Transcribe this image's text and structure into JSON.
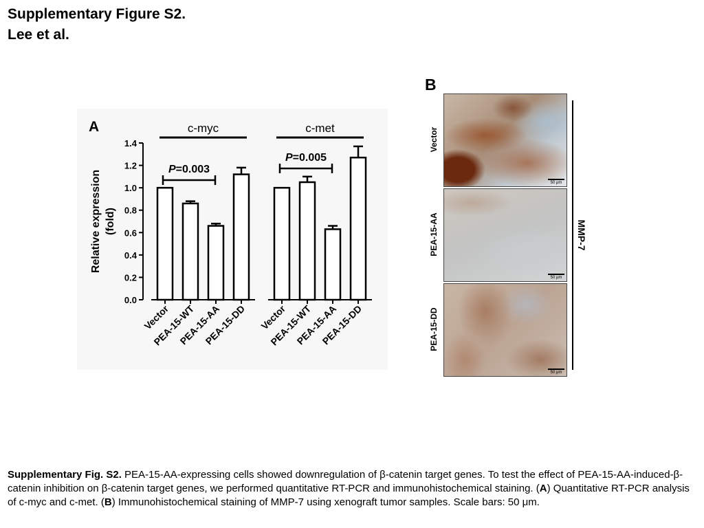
{
  "figure": {
    "title_line1": "Supplementary Figure S2.",
    "title_line2": "Lee et al."
  },
  "panel_a": {
    "letter": "A"
  },
  "panel_b": {
    "letter": "B",
    "rows": [
      {
        "label": "Vector",
        "scale": "50 μm"
      },
      {
        "label": "PEA-15-AA",
        "scale": "50 μm"
      },
      {
        "label": "PEA-15-DD",
        "scale": "50 μm"
      }
    ],
    "bracket_label": "MMP-7"
  },
  "chart_data": {
    "type": "bar",
    "ylabel_line1": "Relative expression",
    "ylabel_line2": "(fold)",
    "ylim": [
      0,
      1.4
    ],
    "yticks": [
      "0.0",
      "0.2",
      "0.4",
      "0.6",
      "0.8",
      "1.0",
      "1.2",
      "1.4"
    ],
    "groups": [
      {
        "name": "c-myc",
        "categories": [
          "Vector",
          "PEA-15-WT",
          "PEA-15-AA",
          "PEA-15-DD"
        ],
        "values": [
          1.0,
          0.86,
          0.66,
          1.12
        ],
        "errors": [
          0.0,
          0.02,
          0.02,
          0.06
        ],
        "pvalue_prefix": "P",
        "pvalue_text": "=0.003"
      },
      {
        "name": "c-met",
        "categories": [
          "Vector",
          "PEA-15-WT",
          "PEA-15-AA",
          "PEA-15-DD"
        ],
        "values": [
          1.0,
          1.05,
          0.63,
          1.27
        ],
        "errors": [
          0.0,
          0.05,
          0.03,
          0.1
        ],
        "pvalue_prefix": "P",
        "pvalue_text": "=0.005"
      }
    ]
  },
  "caption": {
    "lead": "Supplementary Fig. S2.",
    "text1": " PEA-15-AA-expressing cells showed downregulation of β-catenin target genes. To test the effect of PEA-15-AA-induced-β-catenin inhibition on β-catenin target genes, we performed quantitative RT-PCR and immunohistochemical staining. (",
    "a": "A",
    "text2": ") Quantitative RT-PCR analysis of c-myc and c-met. (",
    "b": "B",
    "text3": ") Immunohistochemical staining of MMP-7 using xenograft tumor samples. Scale bars: 50 μm."
  }
}
